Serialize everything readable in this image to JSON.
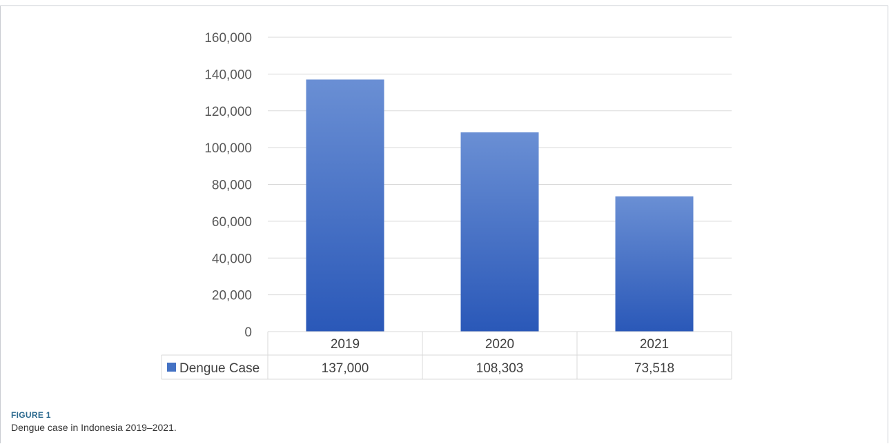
{
  "figure": {
    "label": "FIGURE 1",
    "caption": "Dengue case in Indonesia 2019–2021."
  },
  "colors": {
    "bar_top": "#6a8fd4",
    "bar_bottom": "#2a58b8",
    "legend_swatch": "#4472c4",
    "gridline": "#d9d9d9"
  },
  "chart_data": {
    "type": "bar",
    "title": "",
    "xlabel": "",
    "ylabel": "",
    "categories": [
      "2019",
      "2020",
      "2021"
    ],
    "series": [
      {
        "name": "Dengue Case",
        "values": [
          137000,
          108303,
          73518
        ],
        "value_labels": [
          "137,000",
          "108,303",
          "73,518"
        ]
      }
    ],
    "ylim": [
      0,
      160000
    ],
    "y_ticks": [
      0,
      20000,
      40000,
      60000,
      80000,
      100000,
      120000,
      140000,
      160000
    ],
    "y_tick_labels": [
      "0",
      "20,000",
      "40,000",
      "60,000",
      "80,000",
      "100,000",
      "120,000",
      "140,000",
      "160,000"
    ],
    "grid": true,
    "legend": "data-table"
  }
}
